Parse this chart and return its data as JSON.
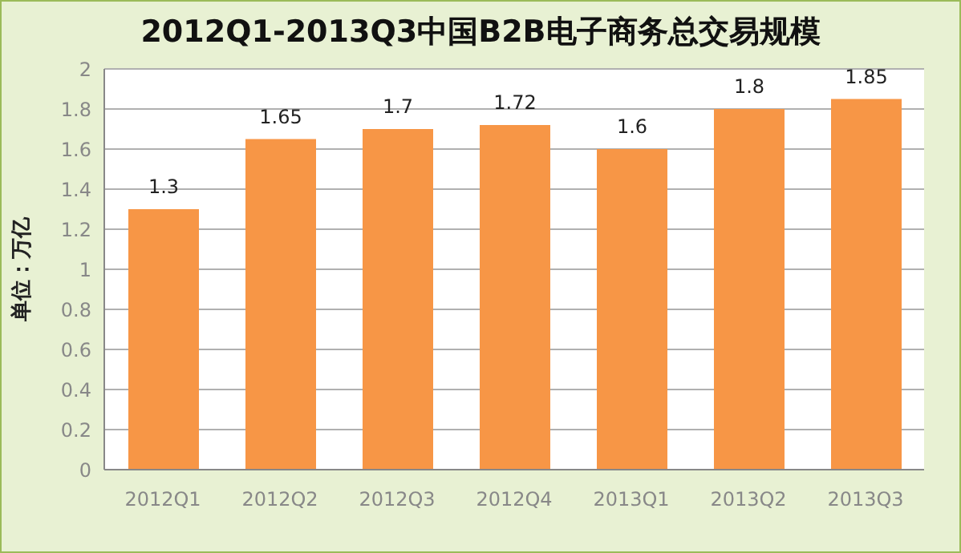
{
  "chart_data": {
    "type": "bar",
    "title": "2012Q1-2013Q3中国B2B电子商务总交易规模",
    "ylabel": "单位：万亿",
    "categories": [
      "2012Q1",
      "2012Q2",
      "2012Q3",
      "2012Q4",
      "2013Q1",
      "2013Q2",
      "2013Q3"
    ],
    "values": [
      1.3,
      1.65,
      1.7,
      1.72,
      1.6,
      1.8,
      1.85
    ],
    "color": "#f79646",
    "ylim": [
      0,
      2
    ],
    "yticks": [
      0,
      0.2,
      0.4,
      0.6,
      0.8,
      1,
      1.2,
      1.4,
      1.6,
      1.8,
      2
    ],
    "grid": "y",
    "data_labels": true,
    "legend": false
  }
}
